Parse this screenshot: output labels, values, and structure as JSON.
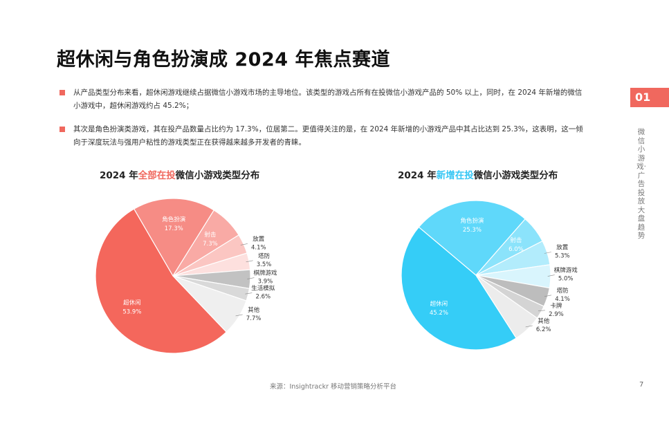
{
  "title": "超休闲与角色扮演成 2024 年焦点赛道",
  "bullets": [
    "从产品类型分布来看，超休闲游戏继续占据微信小游戏市场的主导地位。该类型的游戏占所有在投微信小游戏产品的 50% 以上，同时，在 2024 年新增的微信小游戏中，超休闲游戏约占 45.2%；",
    "其次是角色扮演类游戏，其在投产品数量占比约为 17.3%，位居第二。更值得关注的是，在 2024 年新增的小游戏产品中其占比达到 25.3%，这表明，这一倾向于深度玩法与强用户粘性的游戏类型正在获得越来越多开发者的青睐。"
  ],
  "section_tag": "01",
  "side_label": "微信小游戏·广告投放大盘趋势",
  "source": "来源：Insightrackr 移动营销策略分析平台",
  "page_number": "7",
  "colors": {
    "accent": "#f0685e",
    "blue": "#36c6f4"
  },
  "chart_data": [
    {
      "type": "pie",
      "title_prefix": "2024 年",
      "title_highlight": "全部在投",
      "title_suffix": "微信小游戏类型分布",
      "slices": [
        {
          "label": "超休闲",
          "value": 53.9,
          "value_label": "53.9%",
          "color": "#f4675c",
          "label_inside": true
        },
        {
          "label": "角色扮演",
          "value": 17.3,
          "value_label": "17.3%",
          "color": "#f68c85",
          "label_inside": true
        },
        {
          "label": "射击",
          "value": 7.3,
          "value_label": "7.3%",
          "color": "#f9aaa5",
          "label_inside": true
        },
        {
          "label": "放置",
          "value": 4.1,
          "value_label": "4.1%",
          "color": "#fbc6c2",
          "label_inside": false
        },
        {
          "label": "塔防",
          "value": 3.5,
          "value_label": "3.5%",
          "color": "#fde0de",
          "label_inside": false
        },
        {
          "label": "棋牌游戏",
          "value": 3.9,
          "value_label": "3.9%",
          "color": "#c2c2c2",
          "label_inside": false
        },
        {
          "label": "生活模拟",
          "value": 2.6,
          "value_label": "2.6%",
          "color": "#d9d9d9",
          "label_inside": false
        },
        {
          "label": "其他",
          "value": 7.7,
          "value_label": "7.7%",
          "color": "#efefef",
          "label_inside": false
        }
      ]
    },
    {
      "type": "pie",
      "title_prefix": "2024 年",
      "title_highlight": "新增在投",
      "title_suffix": "微信小游戏类型分布",
      "slices": [
        {
          "label": "超休闲",
          "value": 45.2,
          "value_label": "45.2%",
          "color": "#35cdf7",
          "label_inside": true
        },
        {
          "label": "角色扮演",
          "value": 25.3,
          "value_label": "25.3%",
          "color": "#5fd8fa",
          "label_inside": true
        },
        {
          "label": "射击",
          "value": 6.0,
          "value_label": "6.0%",
          "color": "#8be3fb",
          "label_inside": true
        },
        {
          "label": "放置",
          "value": 5.3,
          "value_label": "5.3%",
          "color": "#b2ecfc",
          "label_inside": false
        },
        {
          "label": "棋牌游戏",
          "value": 5.0,
          "value_label": "5.0%",
          "color": "#d9f5fd",
          "label_inside": false
        },
        {
          "label": "塔防",
          "value": 4.1,
          "value_label": "4.1%",
          "color": "#bdbdbd",
          "label_inside": false
        },
        {
          "label": "卡牌",
          "value": 2.9,
          "value_label": "2.9%",
          "color": "#d4d4d4",
          "label_inside": false
        },
        {
          "label": "其他",
          "value": 6.2,
          "value_label": "6.2%",
          "color": "#ececec",
          "label_inside": false
        }
      ]
    }
  ]
}
